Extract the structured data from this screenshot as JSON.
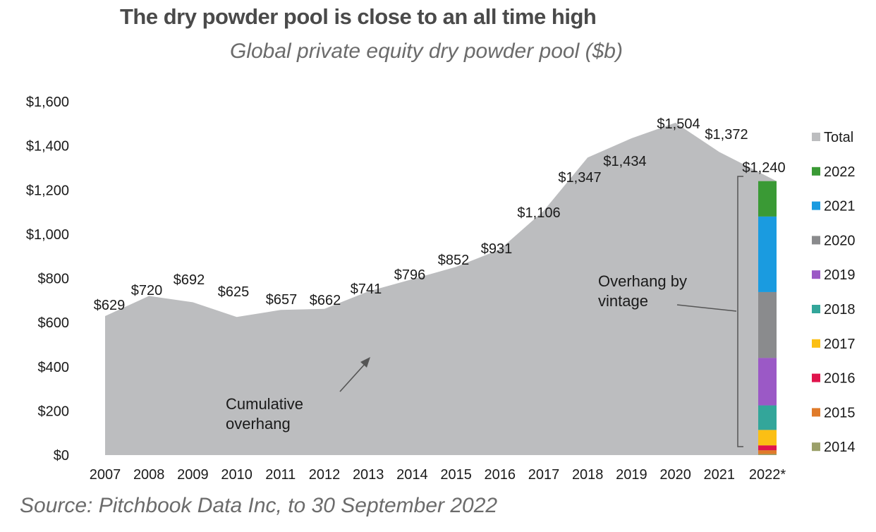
{
  "chart_data": {
    "type": "area",
    "title": "The dry powder pool is close to an all time high",
    "subtitle": "Global private equity dry powder pool ($b)",
    "source": "Source: Pitchbook Data Inc, to 30 September 2022",
    "categories": [
      "2007",
      "2008",
      "2009",
      "2010",
      "2011",
      "2012",
      "2013",
      "2014",
      "2015",
      "2016",
      "2017",
      "2018",
      "2019",
      "2020",
      "2021",
      "2022*"
    ],
    "values": [
      629,
      720,
      692,
      625,
      657,
      662,
      741,
      796,
      852,
      931,
      1106,
      1347,
      1434,
      1504,
      1372,
      1240
    ],
    "value_labels": [
      "$629",
      "$720",
      "$692",
      "$625",
      "$657",
      "$662",
      "$741",
      "$796",
      "$852",
      "$931",
      "$1,106",
      "$1,347",
      "$1,434",
      "$1,504",
      "$1,372",
      "$1,240"
    ],
    "ylim": [
      0,
      1600
    ],
    "yticks": [
      0,
      200,
      400,
      600,
      800,
      1000,
      1200,
      1400,
      1600
    ],
    "ytick_labels": [
      "$0",
      "$200",
      "$400",
      "$600",
      "$800",
      "$1,000",
      "$1,200",
      "$1,400",
      "$1,600"
    ],
    "area_color": "#bcbdbf",
    "stack_2022": {
      "category": "2022*",
      "segments": [
        {
          "name": "2014",
          "value": 5,
          "color": "#9ba06a"
        },
        {
          "name": "2015",
          "value": 17,
          "color": "#e07b2a"
        },
        {
          "name": "2016",
          "value": 22,
          "color": "#e0144c"
        },
        {
          "name": "2017",
          "value": 70,
          "color": "#fbbf14"
        },
        {
          "name": "2018",
          "value": 111,
          "color": "#33a69a"
        },
        {
          "name": "2019",
          "value": 215,
          "color": "#9b59c6"
        },
        {
          "name": "2020",
          "value": 298,
          "color": "#8a8b8d"
        },
        {
          "name": "2021",
          "value": 342,
          "color": "#1a9be0"
        },
        {
          "name": "2022",
          "value": 160,
          "color": "#3a9a35"
        }
      ]
    },
    "legend": [
      {
        "label": "Total",
        "color": "#bcbdbf"
      },
      {
        "label": "2022",
        "color": "#3a9a35"
      },
      {
        "label": "2021",
        "color": "#1a9be0"
      },
      {
        "label": "2020",
        "color": "#8a8b8d"
      },
      {
        "label": "2019",
        "color": "#9b59c6"
      },
      {
        "label": "2018",
        "color": "#33a69a"
      },
      {
        "label": "2017",
        "color": "#fbbf14"
      },
      {
        "label": "2016",
        "color": "#e0144c"
      },
      {
        "label": "2015",
        "color": "#e07b2a"
      },
      {
        "label": "2014",
        "color": "#9ba06a"
      }
    ],
    "annotations": {
      "cumulative": [
        "Cumulative",
        "overhang"
      ],
      "vintage": [
        "Overhang by",
        "vintage"
      ]
    }
  }
}
